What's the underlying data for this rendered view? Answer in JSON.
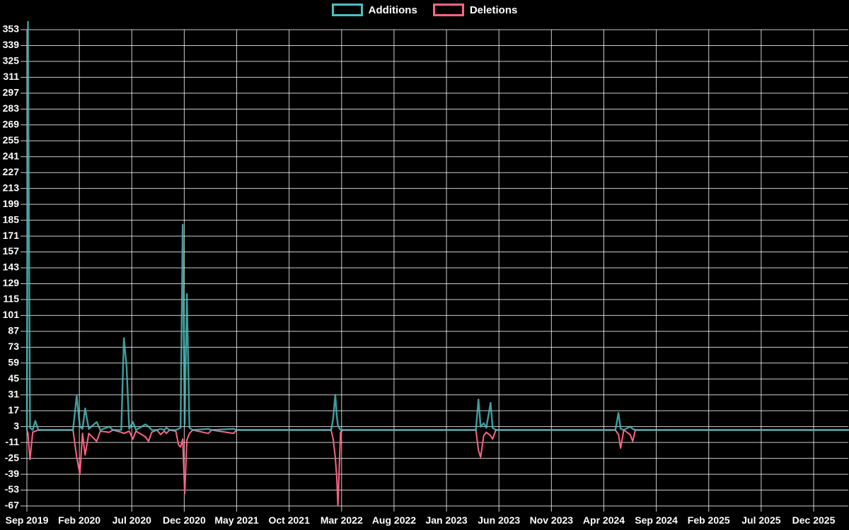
{
  "page": {
    "background": "#000000",
    "grid_color": "rgba(255,255,255,0.8)",
    "text_color": "#ffffff"
  },
  "chart_data": {
    "type": "line",
    "title": "",
    "legend_position": "top",
    "grid": true,
    "series": [
      {
        "name": "Additions",
        "color": "#4bc0c0"
      },
      {
        "name": "Deletions",
        "color": "#ff6384"
      }
    ],
    "x_axis": {
      "unit": "month",
      "tick_interval_months": 5,
      "tick_labels": [
        "Sep 2019",
        "Feb 2020",
        "Jul 2020",
        "Dec 2020",
        "May 2021",
        "Oct 2021",
        "Mar 2022",
        "Aug 2022",
        "Jan 2023",
        "Jun 2023",
        "Nov 2023",
        "Apr 2024",
        "Sep 2024",
        "Feb 2025",
        "Jul 2025",
        "Dec 2025"
      ]
    },
    "y_axis": {
      "min": -67,
      "max": 353,
      "tick_step": 14,
      "tick_labels": [
        353,
        339,
        325,
        311,
        297,
        283,
        269,
        255,
        241,
        227,
        213,
        199,
        185,
        171,
        157,
        143,
        129,
        115,
        101,
        87,
        73,
        59,
        45,
        31,
        17,
        3,
        -11,
        -25,
        -39,
        -53,
        -67
      ]
    },
    "points_columns": [
      "months_after_sep_2019",
      "additions",
      "deletions_plotted_negative"
    ],
    "points": [
      [
        0.0,
        0,
        0
      ],
      [
        0.1,
        360,
        -3
      ],
      [
        0.3,
        2,
        -26
      ],
      [
        0.55,
        0,
        -2
      ],
      [
        0.8,
        8,
        -1
      ],
      [
        1.1,
        0,
        0
      ],
      [
        4.4,
        0,
        0
      ],
      [
        4.75,
        30,
        -24
      ],
      [
        5.05,
        3,
        -39
      ],
      [
        5.3,
        1,
        -3
      ],
      [
        5.55,
        19,
        -22
      ],
      [
        5.9,
        1,
        -3
      ],
      [
        6.65,
        7,
        -10
      ],
      [
        7.0,
        0,
        -1
      ],
      [
        7.85,
        3,
        -2
      ],
      [
        8.2,
        0,
        0
      ],
      [
        9.0,
        0,
        -2
      ],
      [
        9.25,
        81,
        -3
      ],
      [
        9.5,
        56,
        -2
      ],
      [
        9.75,
        1,
        -1
      ],
      [
        10.1,
        7,
        -8
      ],
      [
        10.4,
        0,
        -1
      ],
      [
        11.3,
        5,
        -6
      ],
      [
        11.6,
        3,
        -10
      ],
      [
        11.9,
        0,
        -2
      ],
      [
        12.4,
        0,
        0
      ],
      [
        12.75,
        1,
        -4
      ],
      [
        13.1,
        0,
        -1
      ],
      [
        13.3,
        2,
        -3
      ],
      [
        13.6,
        0,
        0
      ],
      [
        14.2,
        0,
        -1
      ],
      [
        14.45,
        1,
        -13
      ],
      [
        14.65,
        2,
        -15
      ],
      [
        14.85,
        181,
        -8
      ],
      [
        15.05,
        5,
        -56
      ],
      [
        15.25,
        120,
        -9
      ],
      [
        15.5,
        2,
        -3
      ],
      [
        15.8,
        0,
        0
      ],
      [
        17.3,
        1,
        -3
      ],
      [
        17.6,
        0,
        0
      ],
      [
        19.7,
        1,
        -3
      ],
      [
        20.0,
        0,
        0
      ],
      [
        29.0,
        0,
        0
      ],
      [
        29.2,
        10,
        -8
      ],
      [
        29.4,
        31,
        -24
      ],
      [
        29.55,
        12,
        -43
      ],
      [
        29.65,
        4,
        -67
      ],
      [
        29.9,
        0,
        -2
      ],
      [
        30.15,
        0,
        0
      ],
      [
        42.8,
        0,
        0
      ],
      [
        43.05,
        27,
        -18
      ],
      [
        43.25,
        3,
        -24
      ],
      [
        43.55,
        6,
        -5
      ],
      [
        43.8,
        2,
        -2
      ],
      [
        44.2,
        24,
        -5
      ],
      [
        44.4,
        2,
        -8
      ],
      [
        44.7,
        0,
        0
      ],
      [
        56.1,
        0,
        0
      ],
      [
        56.4,
        15,
        -4
      ],
      [
        56.6,
        1,
        -16
      ],
      [
        56.9,
        0,
        0
      ],
      [
        57.5,
        3,
        -4
      ],
      [
        57.75,
        1,
        -10
      ],
      [
        58.0,
        0,
        0
      ],
      [
        78.3,
        0,
        0
      ]
    ]
  }
}
